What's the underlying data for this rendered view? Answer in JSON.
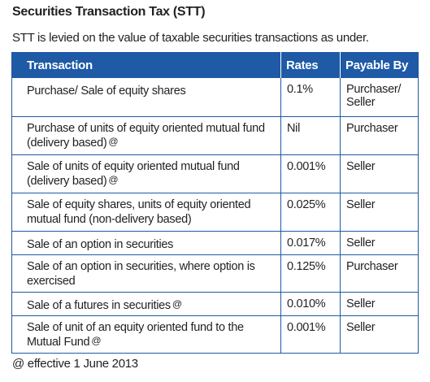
{
  "title": "Securities Transaction Tax (STT)",
  "intro": "STT is levied on the value of taxable securities transactions as under.",
  "colors": {
    "header_bg": "#1e5aa6",
    "border": "#1e5aa6",
    "header_text": "#ffffff"
  },
  "table": {
    "headers": {
      "transaction": "Transaction",
      "rates": "Rates",
      "payable_by": "Payable By"
    },
    "rows": [
      {
        "transaction": "Purchase/ Sale of equity shares",
        "marker": "",
        "rate": "0.1%",
        "payable_by": "Purchaser/ Seller"
      },
      {
        "transaction": "Purchase of units of equity oriented mutual fund (delivery based)",
        "marker": "@",
        "rate": "Nil",
        "payable_by": "Purchaser"
      },
      {
        "transaction": "Sale of units of equity oriented mutual fund (delivery based)",
        "marker": "@",
        "rate": "0.001%",
        "payable_by": "Seller"
      },
      {
        "transaction": "Sale of equity shares, units of equity oriented mutual fund (non-delivery based)",
        "marker": "",
        "rate": "0.025%",
        "payable_by": "Seller"
      },
      {
        "transaction": "Sale of an option in securities",
        "marker": "",
        "rate": "0.017%",
        "payable_by": "Seller"
      },
      {
        "transaction": "Sale of an option in securities, where option is exercised",
        "marker": "",
        "rate": "0.125%",
        "payable_by": "Purchaser"
      },
      {
        "transaction": "Sale of a futures in securities",
        "marker": "@",
        "rate": "0.010%",
        "payable_by": "Seller"
      },
      {
        "transaction": "Sale of unit of an equity oriented fund to the Mutual Fund",
        "marker": "@",
        "rate": "0.001%",
        "payable_by": "Seller"
      }
    ]
  },
  "footnote": "@ effective 1 June 2013"
}
